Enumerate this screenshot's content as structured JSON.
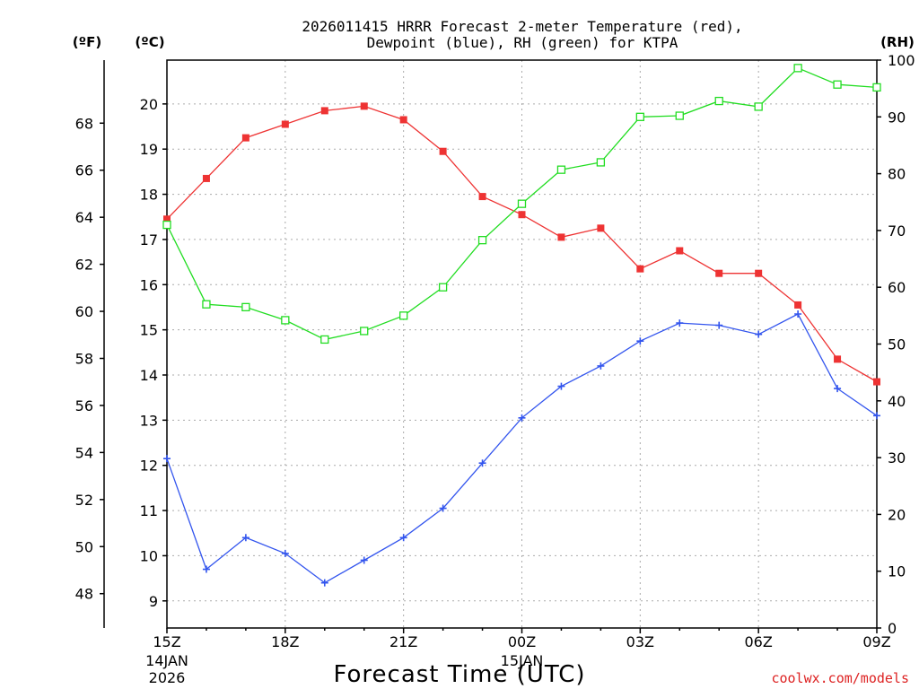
{
  "chart_data": {
    "type": "line",
    "title_line1": "2026011415 HRRR Forecast 2-meter Temperature (red),",
    "title_line2": "Dewpoint (blue), RH (green) for KTPA",
    "xlabel": "Forecast Time (UTC)",
    "x_tick_labels": [
      "15Z",
      "18Z",
      "21Z",
      "00Z",
      "03Z",
      "06Z",
      "09Z"
    ],
    "x_sub_labels": [
      {
        "tick": "15Z",
        "line1": "14JAN",
        "line2": "2026"
      },
      {
        "tick": "00Z",
        "line1": "15JAN",
        "line2": ""
      }
    ],
    "x_hours": [
      0,
      1,
      2,
      3,
      4,
      5,
      6,
      7,
      8,
      9,
      10,
      11,
      12,
      13,
      14,
      15,
      16,
      17,
      18
    ],
    "x_range": [
      0,
      18
    ],
    "left_axis_f": {
      "label": "(ºF)",
      "range": [
        46.54,
        70.68
      ],
      "ticks": [
        48,
        50,
        52,
        54,
        56,
        58,
        60,
        62,
        64,
        66,
        68
      ]
    },
    "left_axis_c": {
      "label": "(ºC)",
      "range": [
        8.4,
        20.97
      ],
      "ticks": [
        9,
        10,
        11,
        12,
        13,
        14,
        15,
        16,
        17,
        18,
        19,
        20
      ]
    },
    "right_axis_rh": {
      "label": "(RH)",
      "range": [
        0,
        100
      ],
      "ticks": [
        0,
        10,
        20,
        30,
        40,
        50,
        60,
        70,
        80,
        90,
        100
      ]
    },
    "series": [
      {
        "name": "Temperature",
        "color": "#ee3333",
        "axis": "C",
        "marker": "filled-square",
        "values": [
          17.45,
          18.35,
          19.25,
          19.55,
          19.85,
          19.95,
          19.65,
          18.95,
          17.95,
          17.55,
          17.05,
          17.25,
          16.35,
          16.75,
          16.25,
          16.25,
          15.55,
          14.35,
          13.85
        ]
      },
      {
        "name": "Dewpoint",
        "color": "#3355ee",
        "axis": "C",
        "marker": "plus",
        "values": [
          12.15,
          9.7,
          10.4,
          10.05,
          9.4,
          9.9,
          10.4,
          11.05,
          12.05,
          13.05,
          13.75,
          14.2,
          14.75,
          15.15,
          15.1,
          14.9,
          15.35,
          13.7,
          13.1
        ]
      },
      {
        "name": "RH",
        "color": "#22dd22",
        "axis": "RH",
        "marker": "open-square",
        "values": [
          71,
          57,
          56.5,
          54.2,
          50.8,
          52.3,
          55,
          60,
          68.3,
          74.7,
          80.7,
          82,
          90,
          90.2,
          92.8,
          91.8,
          98.6,
          95.7,
          95.2
        ]
      }
    ],
    "grid": true,
    "legend": "none"
  },
  "credit": "coolwx.com/models",
  "credit_color": "#dd2222"
}
